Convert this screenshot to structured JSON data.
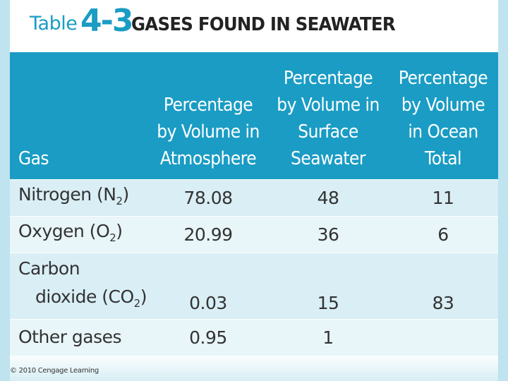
{
  "title": {
    "word": "Table",
    "number": "4-3",
    "text": "GASES FOUND IN SEAWATER"
  },
  "table": {
    "headers": [
      "Gas",
      "Percentage by Volume in Atmosphere",
      "Percentage by Volume in Surface Seawater",
      "Percentage by Volume in Ocean Total"
    ],
    "rows": [
      {
        "gas_main": "Nitrogen (N",
        "gas_sub": "2",
        "gas_tail": ")",
        "atmosphere": "78.08",
        "surface": "48",
        "ocean_total": "11"
      },
      {
        "gas_main": "Oxygen (O",
        "gas_sub": "2",
        "gas_tail": ")",
        "atmosphere": "20.99",
        "surface": "36",
        "ocean_total": "6"
      },
      {
        "gas_line1": "Carbon",
        "gas_main": "dioxide (CO",
        "gas_sub": "2",
        "gas_tail": ")",
        "atmosphere": "0.03",
        "surface": "15",
        "ocean_total": "83"
      },
      {
        "gas_main": "Other gases",
        "atmosphere": "0.95",
        "surface": "1",
        "ocean_total": ""
      }
    ]
  },
  "credit": "© 2010 Cengage Learning",
  "colors": {
    "header_bg": "#1a9cc4",
    "row_light": "#d9eef5",
    "row_mid": "#e8f5f9",
    "title_accent": "#1a9cc4"
  }
}
